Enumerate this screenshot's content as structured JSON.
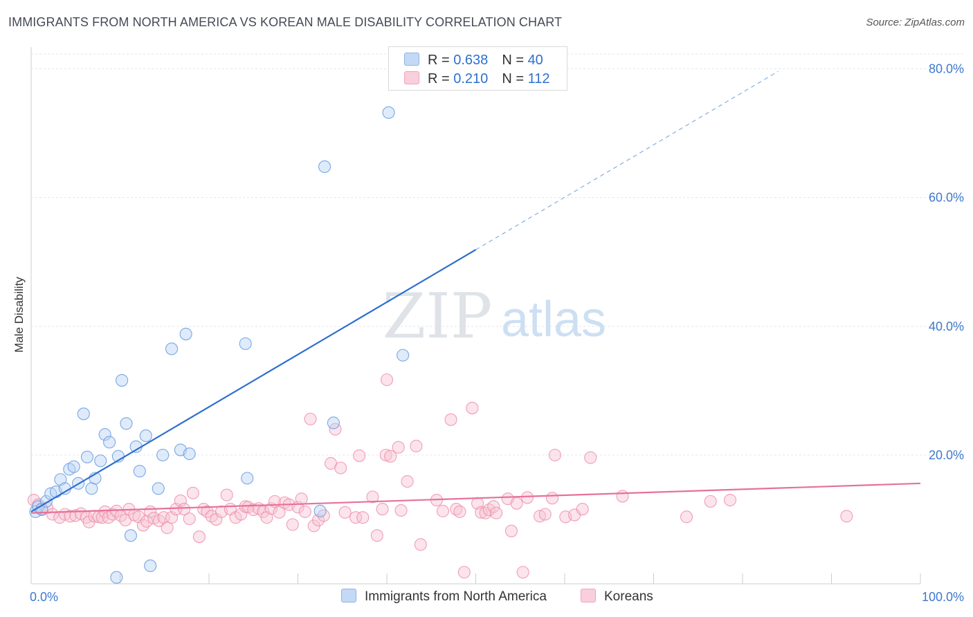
{
  "header": {
    "title": "IMMIGRANTS FROM NORTH AMERICA VS KOREAN MALE DISABILITY CORRELATION CHART",
    "source": "Source: ZipAtlas.com"
  },
  "watermark": {
    "zip": "ZIP",
    "atlas": "atlas"
  },
  "legend": {
    "rows": [
      {
        "r_label": "R = ",
        "r_value": "0.638",
        "n_label": "N = ",
        "n_value": "40",
        "color": "#aecbf2"
      },
      {
        "r_label": "R = ",
        "r_value": "0.210",
        "n_label": "N = ",
        "n_value": "112",
        "color": "#f7bcd0"
      }
    ]
  },
  "bottom_legend": {
    "series1": "Immigrants from North America",
    "series2": "Koreans"
  },
  "colors": {
    "blue_point": "#6a9fe0",
    "blue_line": "#2d6fcf",
    "pink_point": "#ee8eab",
    "pink_line": "#e5719a",
    "tick_label": "#3f78cc"
  },
  "chart_data": {
    "type": "scatter",
    "title": "IMMIGRANTS FROM NORTH AMERICA VS KOREAN MALE DISABILITY CORRELATION CHART",
    "xlabel": "",
    "ylabel": "Male Disability",
    "xlim": [
      0,
      100
    ],
    "ylim": [
      0,
      80
    ],
    "x_tick_labels": [
      "0.0%",
      "100.0%"
    ],
    "y_ticks": [
      20,
      40,
      60,
      80
    ],
    "y_tick_labels": [
      "20.0%",
      "40.0%",
      "60.0%",
      "80.0%"
    ],
    "grid": true,
    "series": [
      {
        "name": "Immigrants from North America",
        "R": 0.638,
        "N": 40,
        "points": [
          [
            0.5,
            11.2
          ],
          [
            0.8,
            12.0
          ],
          [
            1.2,
            11.6
          ],
          [
            1.7,
            12.8
          ],
          [
            2.2,
            14.0
          ],
          [
            2.8,
            14.3
          ],
          [
            3.3,
            16.2
          ],
          [
            3.8,
            14.8
          ],
          [
            4.3,
            17.8
          ],
          [
            4.8,
            18.2
          ],
          [
            5.3,
            15.6
          ],
          [
            5.9,
            26.4
          ],
          [
            6.3,
            19.7
          ],
          [
            6.8,
            14.8
          ],
          [
            7.2,
            16.4
          ],
          [
            7.8,
            19.1
          ],
          [
            8.3,
            23.2
          ],
          [
            8.8,
            22.0
          ],
          [
            9.8,
            19.8
          ],
          [
            10.2,
            31.6
          ],
          [
            10.7,
            24.9
          ],
          [
            11.2,
            7.5
          ],
          [
            11.8,
            21.3
          ],
          [
            12.2,
            17.5
          ],
          [
            12.9,
            23.0
          ],
          [
            14.3,
            14.8
          ],
          [
            14.8,
            20.0
          ],
          [
            15.8,
            36.5
          ],
          [
            16.8,
            20.8
          ],
          [
            17.4,
            38.8
          ],
          [
            17.8,
            20.2
          ],
          [
            24.1,
            37.3
          ],
          [
            24.3,
            16.4
          ],
          [
            32.5,
            11.3
          ],
          [
            33.0,
            64.8
          ],
          [
            34.0,
            25.0
          ],
          [
            40.2,
            73.2
          ],
          [
            41.8,
            35.5
          ],
          [
            9.6,
            1.0
          ],
          [
            13.4,
            2.8
          ]
        ],
        "trend_solid": [
          [
            0,
            11.2
          ],
          [
            50,
            51.9
          ]
        ],
        "trend_dashed": [
          [
            50,
            51.9
          ],
          [
            84,
            79.6
          ]
        ]
      },
      {
        "name": "Koreans",
        "R": 0.21,
        "N": 112,
        "points": [
          [
            0.3,
            13.0
          ],
          [
            0.8,
            12.3
          ],
          [
            1.2,
            11.5
          ],
          [
            1.8,
            11.8
          ],
          [
            2.4,
            10.8
          ],
          [
            3.2,
            10.3
          ],
          [
            3.8,
            10.8
          ],
          [
            4.4,
            10.5
          ],
          [
            5.0,
            10.6
          ],
          [
            5.6,
            10.9
          ],
          [
            6.2,
            10.3
          ],
          [
            6.5,
            9.6
          ],
          [
            7.1,
            10.5
          ],
          [
            7.6,
            10.4
          ],
          [
            8.0,
            10.3
          ],
          [
            8.3,
            11.2
          ],
          [
            8.7,
            10.3
          ],
          [
            9.2,
            10.8
          ],
          [
            9.6,
            11.3
          ],
          [
            10.1,
            10.6
          ],
          [
            10.6,
            9.9
          ],
          [
            11.0,
            11.6
          ],
          [
            11.6,
            10.7
          ],
          [
            12.1,
            10.4
          ],
          [
            12.6,
            9.1
          ],
          [
            13.0,
            9.7
          ],
          [
            13.4,
            11.2
          ],
          [
            13.8,
            10.2
          ],
          [
            14.4,
            9.8
          ],
          [
            14.9,
            10.3
          ],
          [
            15.3,
            8.7
          ],
          [
            15.8,
            10.3
          ],
          [
            16.3,
            11.6
          ],
          [
            16.8,
            12.9
          ],
          [
            17.2,
            11.6
          ],
          [
            17.8,
            10.1
          ],
          [
            18.2,
            14.1
          ],
          [
            18.9,
            7.3
          ],
          [
            19.4,
            11.6
          ],
          [
            19.8,
            11.2
          ],
          [
            20.3,
            10.5
          ],
          [
            20.8,
            10.0
          ],
          [
            21.4,
            11.2
          ],
          [
            22.0,
            13.8
          ],
          [
            22.4,
            11.6
          ],
          [
            23.0,
            10.3
          ],
          [
            23.6,
            10.8
          ],
          [
            24.1,
            12.0
          ],
          [
            24.4,
            11.9
          ],
          [
            25.0,
            11.5
          ],
          [
            25.6,
            11.7
          ],
          [
            26.1,
            11.2
          ],
          [
            26.5,
            10.3
          ],
          [
            27.0,
            11.7
          ],
          [
            27.4,
            12.8
          ],
          [
            27.9,
            11.1
          ],
          [
            28.5,
            12.6
          ],
          [
            29.0,
            12.3
          ],
          [
            29.4,
            9.2
          ],
          [
            30.0,
            11.9
          ],
          [
            30.4,
            13.2
          ],
          [
            30.8,
            11.2
          ],
          [
            31.4,
            25.6
          ],
          [
            31.8,
            9.0
          ],
          [
            32.3,
            9.9
          ],
          [
            32.9,
            10.6
          ],
          [
            33.7,
            18.7
          ],
          [
            34.2,
            24.0
          ],
          [
            34.8,
            18.0
          ],
          [
            35.3,
            11.1
          ],
          [
            36.5,
            10.3
          ],
          [
            36.9,
            19.9
          ],
          [
            37.3,
            10.3
          ],
          [
            38.4,
            13.5
          ],
          [
            38.9,
            7.5
          ],
          [
            39.5,
            11.6
          ],
          [
            39.9,
            20.0
          ],
          [
            40.4,
            19.8
          ],
          [
            40.0,
            31.7
          ],
          [
            41.3,
            21.2
          ],
          [
            41.6,
            11.4
          ],
          [
            42.3,
            15.9
          ],
          [
            43.3,
            21.4
          ],
          [
            43.8,
            6.1
          ],
          [
            45.6,
            13.0
          ],
          [
            46.3,
            11.3
          ],
          [
            47.2,
            25.5
          ],
          [
            47.8,
            11.6
          ],
          [
            48.2,
            11.2
          ],
          [
            48.7,
            1.8
          ],
          [
            49.6,
            27.3
          ],
          [
            50.2,
            12.5
          ],
          [
            50.6,
            11.1
          ],
          [
            51.1,
            11.0
          ],
          [
            51.5,
            11.5
          ],
          [
            52.0,
            12.0
          ],
          [
            52.3,
            11.0
          ],
          [
            53.6,
            13.2
          ],
          [
            54.0,
            8.2
          ],
          [
            54.6,
            12.5
          ],
          [
            55.3,
            1.8
          ],
          [
            55.8,
            13.4
          ],
          [
            57.2,
            10.5
          ],
          [
            57.8,
            10.8
          ],
          [
            58.6,
            13.3
          ],
          [
            58.9,
            20.0
          ],
          [
            60.1,
            10.4
          ],
          [
            61.1,
            10.7
          ],
          [
            62.0,
            11.6
          ],
          [
            62.9,
            19.6
          ],
          [
            66.5,
            13.6
          ],
          [
            73.7,
            10.4
          ],
          [
            76.4,
            12.8
          ],
          [
            78.6,
            13.0
          ],
          [
            91.7,
            10.5
          ]
        ],
        "trend_solid": [
          [
            0,
            11.0
          ],
          [
            100,
            15.6
          ]
        ]
      }
    ]
  }
}
